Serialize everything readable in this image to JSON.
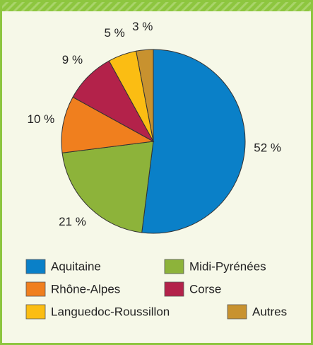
{
  "chart_data": {
    "type": "pie",
    "categories": [
      "Aquitaine",
      "Midi-Pyrénées",
      "Rhône-Alpes",
      "Corse",
      "Languedoc-Roussillon",
      "Autres"
    ],
    "values": [
      52,
      21,
      10,
      9,
      5,
      3
    ],
    "value_labels": [
      "52 %",
      "21 %",
      "10 %",
      "9 %",
      "5 %",
      "3 %"
    ],
    "colors": [
      "#0a80c8",
      "#8db33a",
      "#f07f1e",
      "#b3224a",
      "#fbbd13",
      "#c8922f"
    ],
    "legend": "bottom"
  }
}
